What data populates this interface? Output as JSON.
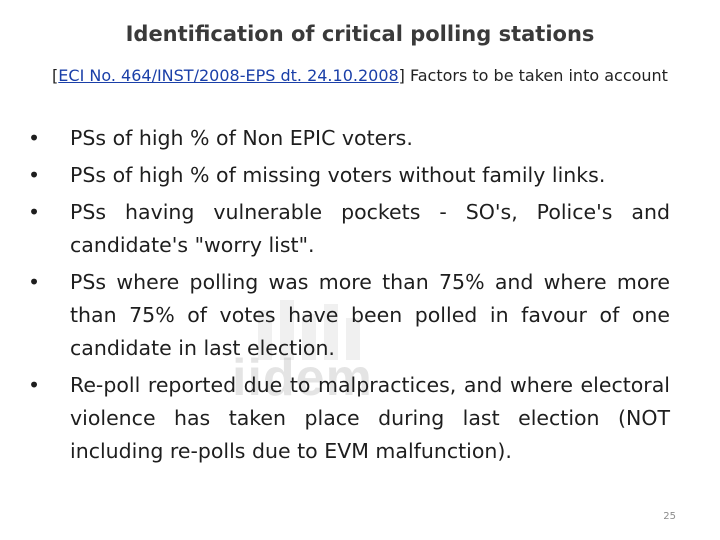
{
  "slide": {
    "title": "Identification of critical polling stations",
    "subtitle_open": "[",
    "subtitle_ref": "ECI No. 464/INST/2008-EPS dt. 24.10.2008",
    "subtitle_close": "] Factors to be taken into account",
    "watermark_text": "iidem",
    "bullets": [
      "PSs of high % of Non EPIC voters.",
      "PSs of high % of missing voters without family links.",
      "PSs having vulnerable pockets - SO's, Police's and candidate's \"worry list\".",
      "PSs where polling was more than 75% and where more than 75% of votes have been polled in favour of one candidate in last election.",
      "Re-poll reported due to malpractices, and where electoral violence has taken place during last election (NOT including re-polls due to EVM malfunction)."
    ],
    "bullet_glyph": "•",
    "page_number": "25"
  },
  "colors": {
    "title": "#3a3a3a",
    "link": "#1a3fa8",
    "page_number": "#8c8c8c"
  }
}
